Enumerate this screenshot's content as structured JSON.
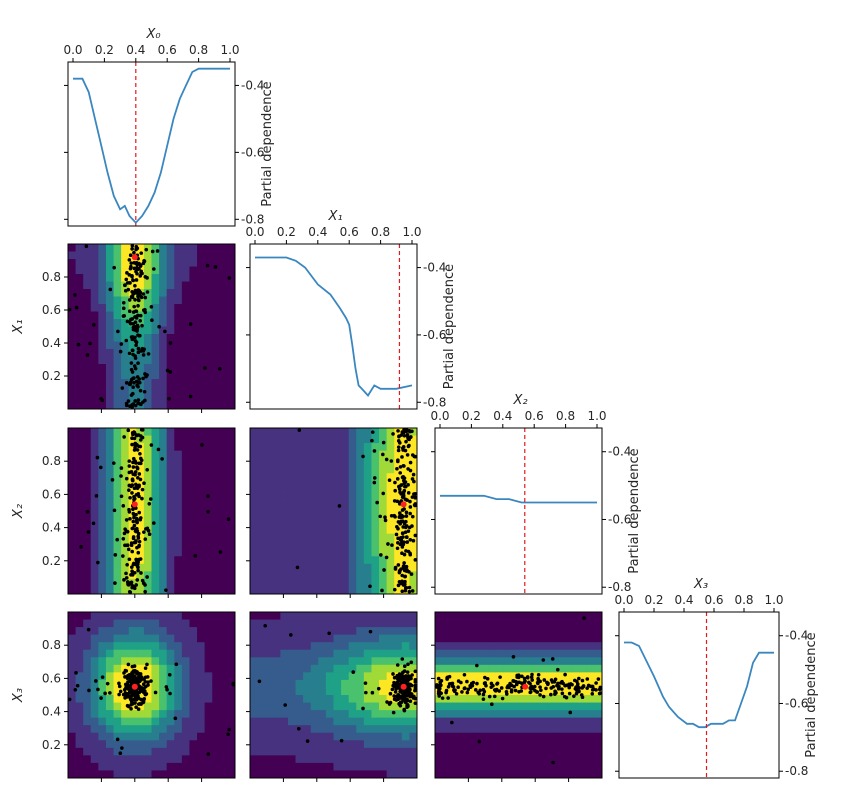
{
  "figure": {
    "diag_xlabels": [
      "X₀",
      "X₁",
      "X₂",
      "X₃"
    ],
    "row_ylabels": [
      "",
      "X₁",
      "X₂",
      "X₃"
    ],
    "pd_label": "Partial dependence",
    "top_ticks": [
      "0.0",
      "0.2",
      "0.4",
      "0.6",
      "0.8",
      "1.0"
    ],
    "pd_ticks": [
      "-0.4",
      "-0.6",
      "-0.8"
    ],
    "y_ticks": [
      "0.2",
      "0.4",
      "0.6",
      "0.8"
    ],
    "colors": {
      "line": "#3a87c0",
      "vline": "#e41a1c",
      "point": "#000000",
      "best": "#ff2020"
    }
  },
  "chart_data": {
    "type": "partial-dependence-grid",
    "dimensions": [
      "X₀",
      "X₁",
      "X₂",
      "X₃"
    ],
    "best_point": [
      0.4,
      0.92,
      0.54,
      0.55
    ],
    "x_range": [
      0,
      1
    ],
    "pd_range": [
      -0.82,
      -0.33
    ],
    "pd_curves": [
      {
        "name": "X₀",
        "x": [
          0.0,
          0.06,
          0.1,
          0.14,
          0.18,
          0.22,
          0.26,
          0.3,
          0.33,
          0.36,
          0.4,
          0.44,
          0.48,
          0.52,
          0.56,
          0.6,
          0.64,
          0.68,
          0.72,
          0.76,
          0.8,
          1.0
        ],
        "y": [
          -0.38,
          -0.38,
          -0.42,
          -0.5,
          -0.58,
          -0.66,
          -0.73,
          -0.77,
          -0.76,
          -0.79,
          -0.81,
          -0.79,
          -0.76,
          -0.72,
          -0.66,
          -0.58,
          -0.5,
          -0.44,
          -0.4,
          -0.36,
          -0.35,
          -0.35
        ]
      },
      {
        "name": "X₁",
        "x": [
          0.0,
          0.05,
          0.1,
          0.2,
          0.26,
          0.32,
          0.4,
          0.48,
          0.54,
          0.58,
          0.6,
          0.62,
          0.64,
          0.66,
          0.68,
          0.72,
          0.76,
          0.8,
          0.84,
          0.9,
          1.0
        ],
        "y": [
          -0.37,
          -0.37,
          -0.37,
          -0.37,
          -0.38,
          -0.4,
          -0.45,
          -0.48,
          -0.52,
          -0.55,
          -0.57,
          -0.63,
          -0.7,
          -0.75,
          -0.76,
          -0.78,
          -0.75,
          -0.76,
          -0.76,
          -0.76,
          -0.75
        ]
      },
      {
        "name": "X₂",
        "x": [
          0.0,
          0.1,
          0.2,
          0.28,
          0.36,
          0.44,
          0.52,
          0.6,
          0.68,
          0.76,
          0.84,
          0.92,
          1.0
        ],
        "y": [
          -0.53,
          -0.53,
          -0.53,
          -0.53,
          -0.54,
          -0.54,
          -0.55,
          -0.55,
          -0.55,
          -0.55,
          -0.55,
          -0.55,
          -0.55
        ]
      },
      {
        "name": "X₃",
        "x": [
          0.0,
          0.05,
          0.1,
          0.2,
          0.26,
          0.3,
          0.36,
          0.42,
          0.46,
          0.5,
          0.54,
          0.58,
          0.62,
          0.66,
          0.7,
          0.74,
          0.78,
          0.82,
          0.86,
          0.9,
          1.0
        ],
        "y": [
          -0.42,
          -0.42,
          -0.43,
          -0.52,
          -0.58,
          -0.61,
          -0.64,
          -0.66,
          -0.66,
          -0.67,
          -0.67,
          -0.66,
          -0.66,
          -0.66,
          -0.65,
          -0.65,
          -0.6,
          -0.55,
          -0.48,
          -0.45,
          -0.45
        ]
      }
    ],
    "scatter_panels": [
      {
        "row": "X₁",
        "col": "X₀",
        "point_count": 220
      },
      {
        "row": "X₂",
        "col": "X₀",
        "point_count": 220
      },
      {
        "row": "X₂",
        "col": "X₁",
        "point_count": 220
      },
      {
        "row": "X₃",
        "col": "X₀",
        "point_count": 220
      },
      {
        "row": "X₃",
        "col": "X₁",
        "point_count": 220
      },
      {
        "row": "X₃",
        "col": "X₂",
        "point_count": 220
      }
    ]
  }
}
